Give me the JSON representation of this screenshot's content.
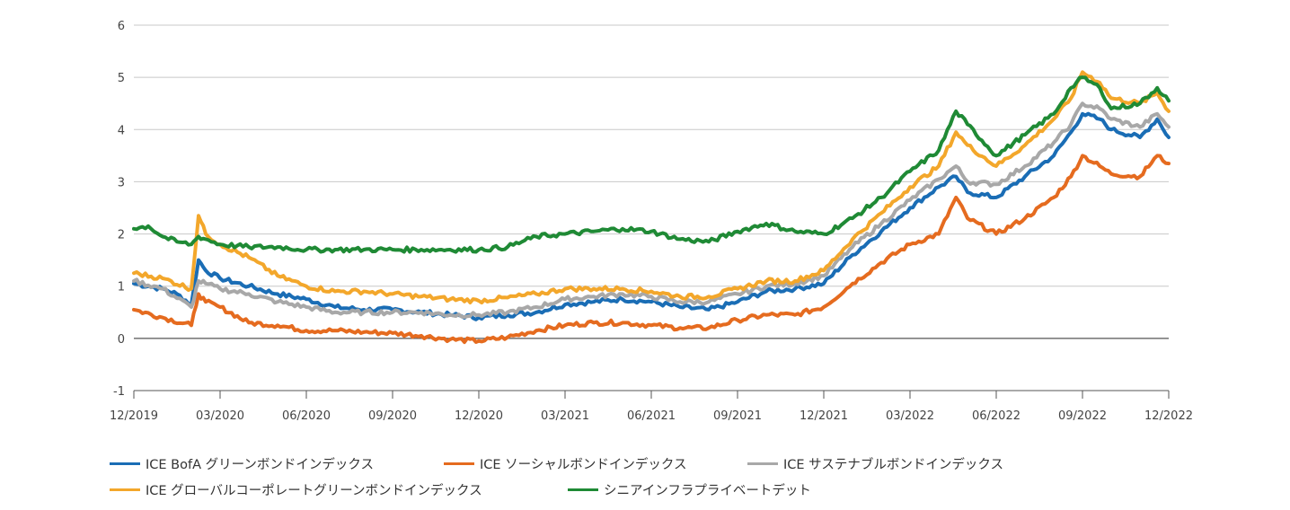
{
  "chart_data": {
    "type": "line",
    "ylim": [
      -1,
      6
    ],
    "y_ticks": [
      "6",
      "5",
      "4",
      "3",
      "2",
      "1",
      "0",
      "-1"
    ],
    "x_ticks": [
      "12/2019",
      "03/2020",
      "06/2020",
      "09/2020",
      "12/2020",
      "03/2021",
      "06/2021",
      "09/2021",
      "12/2021",
      "03/2022",
      "06/2022",
      "09/2022",
      "12/2022"
    ],
    "grid": true,
    "legend_position": "bottom",
    "series": [
      {
        "name": "ICE BofA グリーンボンドインデックス",
        "color": "#1a6db5",
        "points": [
          [
            0,
            1.05
          ],
          [
            0.5,
            1.0
          ],
          [
            1,
            0.95
          ],
          [
            1.5,
            0.85
          ],
          [
            2,
            0.65
          ],
          [
            2.25,
            1.5
          ],
          [
            2.5,
            1.3
          ],
          [
            3,
            1.15
          ],
          [
            4,
            1.0
          ],
          [
            5,
            0.85
          ],
          [
            6,
            0.75
          ],
          [
            7,
            0.6
          ],
          [
            8,
            0.55
          ],
          [
            9,
            0.55
          ],
          [
            10,
            0.5
          ],
          [
            11,
            0.45
          ],
          [
            12,
            0.4
          ],
          [
            13,
            0.45
          ],
          [
            14,
            0.5
          ],
          [
            15,
            0.65
          ],
          [
            16,
            0.7
          ],
          [
            17,
            0.75
          ],
          [
            18,
            0.7
          ],
          [
            19,
            0.6
          ],
          [
            20,
            0.55
          ],
          [
            21,
            0.7
          ],
          [
            22,
            0.9
          ],
          [
            23,
            0.95
          ],
          [
            24,
            1.05
          ],
          [
            25,
            1.6
          ],
          [
            26,
            2.05
          ],
          [
            27,
            2.5
          ],
          [
            28,
            2.9
          ],
          [
            28.6,
            3.1
          ],
          [
            29,
            2.8
          ],
          [
            30,
            2.7
          ],
          [
            31,
            3.1
          ],
          [
            32,
            3.5
          ],
          [
            32.6,
            3.95
          ],
          [
            33,
            4.3
          ],
          [
            33.6,
            4.2
          ],
          [
            34,
            4.0
          ],
          [
            35,
            3.85
          ],
          [
            35.6,
            4.2
          ],
          [
            36,
            3.85
          ]
        ]
      },
      {
        "name": "ICE ソーシャルボンドインデックス",
        "color": "#e56b1f",
        "points": [
          [
            0,
            0.55
          ],
          [
            1,
            0.4
          ],
          [
            2,
            0.25
          ],
          [
            2.25,
            0.85
          ],
          [
            2.5,
            0.7
          ],
          [
            3,
            0.6
          ],
          [
            4,
            0.3
          ],
          [
            5,
            0.25
          ],
          [
            6,
            0.15
          ],
          [
            7,
            0.15
          ],
          [
            8,
            0.12
          ],
          [
            9,
            0.1
          ],
          [
            10,
            0.05
          ],
          [
            11,
            -0.02
          ],
          [
            12,
            -0.05
          ],
          [
            13,
            0.02
          ],
          [
            14,
            0.15
          ],
          [
            15,
            0.25
          ],
          [
            16,
            0.3
          ],
          [
            17,
            0.3
          ],
          [
            18,
            0.25
          ],
          [
            19,
            0.2
          ],
          [
            20,
            0.2
          ],
          [
            21,
            0.35
          ],
          [
            22,
            0.45
          ],
          [
            23,
            0.45
          ],
          [
            24,
            0.6
          ],
          [
            25,
            1.05
          ],
          [
            26,
            1.45
          ],
          [
            27,
            1.8
          ],
          [
            28,
            2.0
          ],
          [
            28.6,
            2.7
          ],
          [
            29,
            2.3
          ],
          [
            30,
            2.0
          ],
          [
            31,
            2.3
          ],
          [
            32,
            2.7
          ],
          [
            32.6,
            3.1
          ],
          [
            33,
            3.5
          ],
          [
            33.6,
            3.3
          ],
          [
            34,
            3.15
          ],
          [
            35,
            3.1
          ],
          [
            35.6,
            3.5
          ],
          [
            36,
            3.35
          ]
        ]
      },
      {
        "name": "ICE サステナブルボンドインデックス",
        "color": "#a8a8a8",
        "points": [
          [
            0,
            1.1
          ],
          [
            1,
            0.95
          ],
          [
            2,
            0.6
          ],
          [
            2.25,
            1.1
          ],
          [
            2.5,
            1.05
          ],
          [
            3,
            0.95
          ],
          [
            4,
            0.85
          ],
          [
            5,
            0.7
          ],
          [
            6,
            0.6
          ],
          [
            7,
            0.5
          ],
          [
            8,
            0.5
          ],
          [
            9,
            0.5
          ],
          [
            10,
            0.5
          ],
          [
            11,
            0.45
          ],
          [
            12,
            0.45
          ],
          [
            13,
            0.5
          ],
          [
            14,
            0.6
          ],
          [
            15,
            0.75
          ],
          [
            16,
            0.8
          ],
          [
            17,
            0.85
          ],
          [
            18,
            0.8
          ],
          [
            19,
            0.7
          ],
          [
            20,
            0.7
          ],
          [
            21,
            0.85
          ],
          [
            22,
            1.0
          ],
          [
            23,
            1.05
          ],
          [
            24,
            1.2
          ],
          [
            25,
            1.75
          ],
          [
            26,
            2.2
          ],
          [
            27,
            2.65
          ],
          [
            28,
            3.05
          ],
          [
            28.6,
            3.3
          ],
          [
            29,
            3.0
          ],
          [
            30,
            2.95
          ],
          [
            31,
            3.3
          ],
          [
            32,
            3.75
          ],
          [
            32.6,
            4.1
          ],
          [
            33,
            4.5
          ],
          [
            33.6,
            4.4
          ],
          [
            34,
            4.2
          ],
          [
            35,
            4.05
          ],
          [
            35.6,
            4.3
          ],
          [
            36,
            4.05
          ]
        ]
      },
      {
        "name": "ICE グローバルコーポレートグリーンボンドインデックス",
        "color": "#f3a72b",
        "points": [
          [
            0,
            1.25
          ],
          [
            1,
            1.15
          ],
          [
            2,
            0.95
          ],
          [
            2.25,
            2.35
          ],
          [
            2.5,
            2.0
          ],
          [
            3,
            1.8
          ],
          [
            4,
            1.55
          ],
          [
            5,
            1.2
          ],
          [
            6,
            1.0
          ],
          [
            7,
            0.9
          ],
          [
            8,
            0.9
          ],
          [
            9,
            0.85
          ],
          [
            10,
            0.8
          ],
          [
            11,
            0.75
          ],
          [
            12,
            0.72
          ],
          [
            13,
            0.78
          ],
          [
            14,
            0.85
          ],
          [
            15,
            0.95
          ],
          [
            16,
            0.95
          ],
          [
            17,
            0.95
          ],
          [
            18,
            0.9
          ],
          [
            19,
            0.8
          ],
          [
            20,
            0.8
          ],
          [
            21,
            0.95
          ],
          [
            22,
            1.1
          ],
          [
            23,
            1.1
          ],
          [
            24,
            1.3
          ],
          [
            25,
            1.9
          ],
          [
            26,
            2.4
          ],
          [
            27,
            2.9
          ],
          [
            28,
            3.3
          ],
          [
            28.6,
            3.95
          ],
          [
            29,
            3.7
          ],
          [
            30,
            3.3
          ],
          [
            31,
            3.7
          ],
          [
            32,
            4.2
          ],
          [
            32.6,
            4.6
          ],
          [
            33,
            5.1
          ],
          [
            33.6,
            4.9
          ],
          [
            34,
            4.6
          ],
          [
            35,
            4.5
          ],
          [
            35.6,
            4.7
          ],
          [
            36,
            4.35
          ]
        ]
      },
      {
        "name": "シニアインフラプライベートデット",
        "color": "#1f8a35",
        "points": [
          [
            0,
            2.1
          ],
          [
            0.5,
            2.15
          ],
          [
            1,
            1.95
          ],
          [
            1.5,
            1.85
          ],
          [
            2,
            1.8
          ],
          [
            2.25,
            1.95
          ],
          [
            2.5,
            1.9
          ],
          [
            3,
            1.8
          ],
          [
            4,
            1.75
          ],
          [
            5,
            1.75
          ],
          [
            6,
            1.7
          ],
          [
            7,
            1.7
          ],
          [
            8,
            1.7
          ],
          [
            9,
            1.7
          ],
          [
            10,
            1.7
          ],
          [
            11,
            1.7
          ],
          [
            12,
            1.7
          ],
          [
            13,
            1.75
          ],
          [
            14,
            1.95
          ],
          [
            15,
            2.0
          ],
          [
            16,
            2.05
          ],
          [
            17,
            2.1
          ],
          [
            18,
            2.05
          ],
          [
            19,
            1.9
          ],
          [
            20,
            1.85
          ],
          [
            21,
            2.05
          ],
          [
            22,
            2.2
          ],
          [
            23,
            2.05
          ],
          [
            24,
            2.0
          ],
          [
            25,
            2.3
          ],
          [
            26,
            2.7
          ],
          [
            27,
            3.2
          ],
          [
            28,
            3.6
          ],
          [
            28.6,
            4.35
          ],
          [
            29,
            4.1
          ],
          [
            30,
            3.5
          ],
          [
            31,
            3.9
          ],
          [
            32,
            4.3
          ],
          [
            32.6,
            4.8
          ],
          [
            33,
            5.0
          ],
          [
            33.6,
            4.8
          ],
          [
            34,
            4.4
          ],
          [
            35,
            4.5
          ],
          [
            35.6,
            4.8
          ],
          [
            36,
            4.55
          ]
        ]
      }
    ]
  },
  "legend": {
    "item0": "ICE BofA グリーンボンドインデックス",
    "item1": "ICE ソーシャルボンドインデックス",
    "item2": "ICE サステナブルボンドインデックス",
    "item3": "ICE グローバルコーポレートグリーンボンドインデックス",
    "item4": "シニアインフラプライベートデット"
  }
}
